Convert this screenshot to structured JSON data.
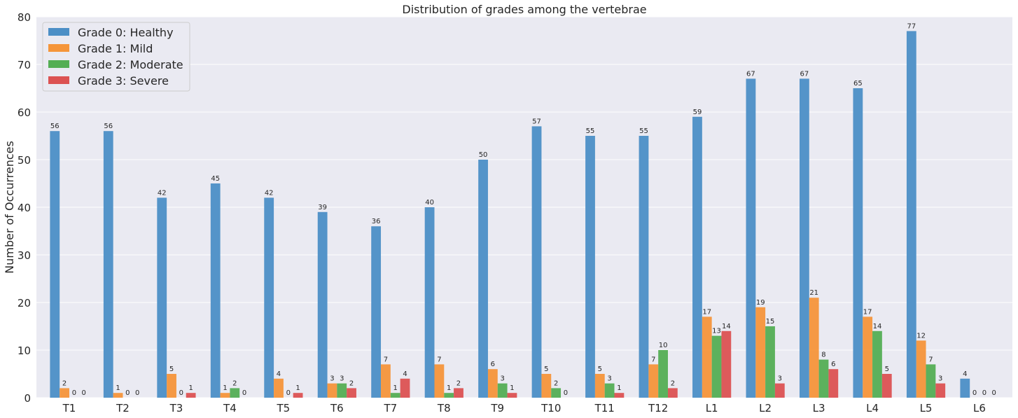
{
  "chart_data": {
    "type": "bar",
    "title": "Distribution of grades among the vertebrae",
    "xlabel": "",
    "ylabel": "Number of Occurrences",
    "ylim": [
      0,
      80
    ],
    "yticks": [
      0,
      10,
      20,
      30,
      40,
      50,
      60,
      70,
      80
    ],
    "grid": true,
    "legend_position": "top-left",
    "categories": [
      "T1",
      "T2",
      "T3",
      "T4",
      "T5",
      "T6",
      "T7",
      "T8",
      "T9",
      "T10",
      "T11",
      "T12",
      "L1",
      "L2",
      "L3",
      "L4",
      "L5",
      "L6"
    ],
    "series": [
      {
        "name": "Grade 0: Healthy",
        "color": "#4c8fc6",
        "values": [
          56,
          56,
          42,
          45,
          42,
          39,
          36,
          40,
          50,
          57,
          55,
          55,
          59,
          67,
          67,
          65,
          77,
          4
        ]
      },
      {
        "name": "Grade 1: Mild",
        "color": "#f5953a",
        "values": [
          2,
          1,
          5,
          1,
          4,
          3,
          7,
          7,
          6,
          5,
          5,
          7,
          17,
          19,
          21,
          17,
          12,
          0
        ]
      },
      {
        "name": "Grade 2: Moderate",
        "color": "#54ae54",
        "values": [
          0,
          0,
          0,
          2,
          0,
          3,
          1,
          1,
          3,
          2,
          3,
          10,
          13,
          15,
          8,
          14,
          7,
          0
        ]
      },
      {
        "name": "Grade 3: Severe",
        "color": "#dc5252",
        "values": [
          0,
          0,
          1,
          0,
          1,
          2,
          4,
          2,
          1,
          0,
          1,
          2,
          14,
          3,
          6,
          5,
          3,
          0
        ]
      }
    ]
  }
}
